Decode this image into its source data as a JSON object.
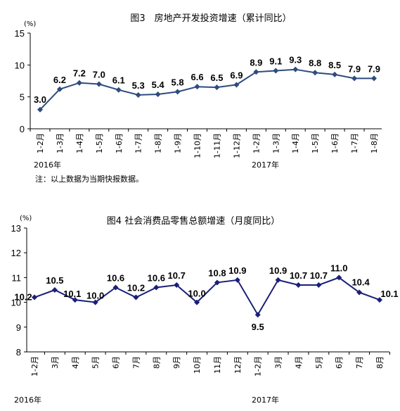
{
  "chart_data": [
    {
      "type": "line",
      "title": "图3　房地产开发投资增速（累计同比）",
      "unit": "(%)",
      "ylim": [
        0,
        15
      ],
      "yticks": [
        0,
        5,
        10,
        15
      ],
      "categories": [
        "1-2月",
        "1-3月",
        "1-4月",
        "1-5月",
        "1-6月",
        "1-7月",
        "1-8月",
        "1-9月",
        "1-10月",
        "1-11月",
        "1-12月",
        "1-2月",
        "1-3月",
        "1-4月",
        "1-5月",
        "1-6月",
        "1-7月",
        "1-8月"
      ],
      "values": [
        3.0,
        6.2,
        7.2,
        7.0,
        6.1,
        5.3,
        5.4,
        5.8,
        6.6,
        6.5,
        6.9,
        8.9,
        9.1,
        9.3,
        8.8,
        8.5,
        7.9,
        7.9
      ],
      "value_labels": [
        "3.0",
        "6.2",
        "7.2",
        "7.0",
        "6.1",
        "5.3",
        "5.4",
        "5.8",
        "6.6",
        "6.5",
        "6.9",
        "8.9",
        "9.1",
        "9.3",
        "8.8",
        "8.5",
        "7.9",
        "7.9"
      ],
      "year_labels": [
        "2016年",
        "2017年"
      ],
      "note": "注：以上数据为当期快报数据。",
      "line_color": "#2e4c7d",
      "marker": "diamond",
      "grid": false
    },
    {
      "type": "line",
      "title": "图4 社会消费品零售总额增速（月度同比）",
      "unit": "(%)",
      "ylim": [
        8,
        13
      ],
      "yticks": [
        8,
        9,
        10,
        11,
        12,
        13
      ],
      "categories": [
        "1-2月",
        "3月",
        "4月",
        "5月",
        "6月",
        "7月",
        "8月",
        "9月",
        "10月",
        "11月",
        "12月",
        "1-2月",
        "3月",
        "4月",
        "5月",
        "6月",
        "7月",
        "8月"
      ],
      "values": [
        10.2,
        10.5,
        10.1,
        10.0,
        10.6,
        10.2,
        10.6,
        10.7,
        10.0,
        10.8,
        10.9,
        9.5,
        10.9,
        10.7,
        10.7,
        11.0,
        10.4,
        10.1
      ],
      "value_labels": [
        "10.2",
        "10.5",
        "10.1",
        "10.0",
        "10.6",
        "10.2",
        "10.6",
        "10.7",
        "10.0",
        "10.8",
        "10.9",
        "9.5",
        "10.9",
        "10.7",
        "10.7",
        "11.0",
        "10.4",
        "10.1"
      ],
      "year_labels": [
        "2016年",
        "2017年"
      ],
      "line_color": "#1a1f78",
      "marker": "diamond",
      "grid": false
    }
  ]
}
